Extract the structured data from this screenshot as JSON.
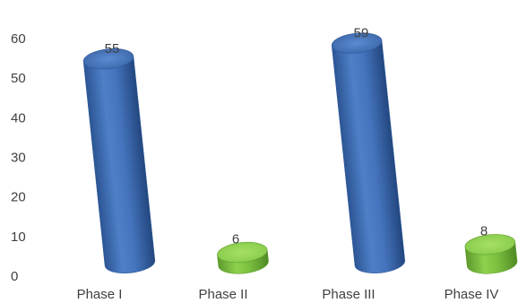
{
  "chart_data": {
    "type": "bar",
    "categories": [
      "Phase I",
      "Phase II",
      "Phase III",
      "Phase IV"
    ],
    "values": [
      55,
      6,
      59,
      8
    ],
    "data_labels": [
      "55",
      "6",
      "59",
      "8"
    ],
    "ylim": [
      0,
      60
    ],
    "yticks": [
      0,
      10,
      20,
      30,
      40,
      50,
      60
    ],
    "title": "",
    "xlabel": "",
    "ylabel": "",
    "grid": false,
    "legend": "none",
    "colors": [
      "#4472c4",
      "#7ac143",
      "#4472c4",
      "#7ac143"
    ]
  }
}
